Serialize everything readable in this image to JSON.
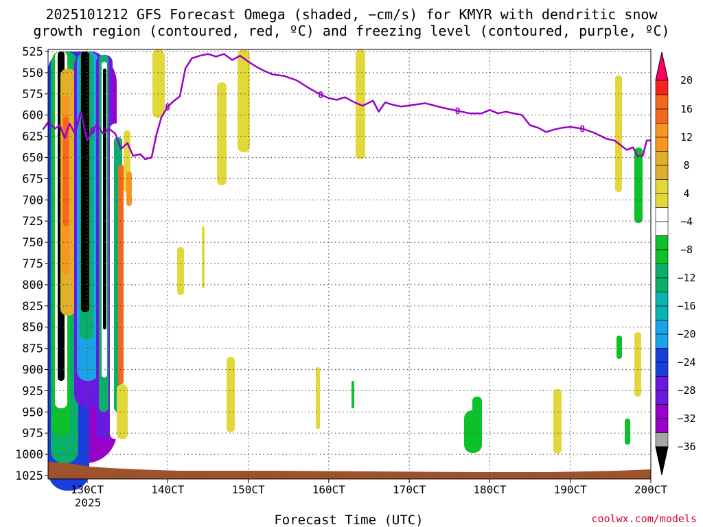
{
  "title": {
    "line1": "2025101212 GFS Forecast Omega (shaded, −cm/s) for KMYR with dendritic snow",
    "line2": "growth region (contoured, red, ºC) and freezing level (contoured, purple, ºC)"
  },
  "xlabel": "Forecast Time (UTC)",
  "credit": "coolwx.com/models",
  "colors": {
    "freezing_line": "#9a00c8",
    "ground": "#a0522d",
    "grid": "#555555"
  },
  "colorbar": {
    "labels": [
      "20",
      "16",
      "12",
      "8",
      "4",
      "−4",
      "−8",
      "−12",
      "−16",
      "−20",
      "−24",
      "−28",
      "−32",
      "−36"
    ],
    "colors": [
      "#ff0060",
      "#f4231d",
      "#f4671e",
      "#f79722",
      "#e2af2a",
      "#e3d83a",
      "#ffffff",
      "#0dc12a",
      "#0ab06a",
      "#09b3b0",
      "#1ba3e8",
      "#1a3ede",
      "#6a1ae0",
      "#9a00c8",
      "#a6a6a6",
      "#000000"
    ]
  },
  "chart_data": {
    "type": "heatmap",
    "title": "2025101212 GFS Forecast Omega (shaded, −cm/s) for KMYR with dendritic snow growth region (contoured, red, ºC) and freezing level (contoured, purple, ºC)",
    "xlabel": "Forecast Time (UTC)",
    "ylabel": "",
    "x_tick_labels": [
      "130CT",
      "140CT",
      "150CT",
      "160CT",
      "170CT",
      "180CT",
      "190CT",
      "200CT"
    ],
    "x_year_label": "2025",
    "y_axis": {
      "ticks": [
        525,
        550,
        575,
        600,
        625,
        650,
        675,
        700,
        725,
        750,
        775,
        800,
        825,
        850,
        875,
        900,
        925,
        950,
        975,
        1000,
        1025
      ],
      "range": [
        525,
        1025
      ],
      "unit": "hPa",
      "inverted": true
    },
    "x_range_days": [
      12.45,
      20.0
    ],
    "grid": true,
    "freezing_level": {
      "label": "0",
      "points": [
        [
          12.45,
          617
        ],
        [
          12.52,
          608
        ],
        [
          12.6,
          616
        ],
        [
          12.66,
          612
        ],
        [
          12.72,
          627
        ],
        [
          12.78,
          610
        ],
        [
          12.85,
          622
        ],
        [
          12.92,
          596
        ],
        [
          13.0,
          630
        ],
        [
          13.07,
          618
        ],
        [
          13.12,
          611
        ],
        [
          13.2,
          622
        ],
        [
          13.27,
          616
        ],
        [
          13.35,
          622
        ],
        [
          13.42,
          640
        ],
        [
          13.5,
          633
        ],
        [
          13.57,
          648
        ],
        [
          13.66,
          646
        ],
        [
          13.72,
          652
        ],
        [
          13.8,
          650
        ],
        [
          13.86,
          623
        ],
        [
          13.92,
          603
        ],
        [
          14.0,
          590
        ],
        [
          14.08,
          583
        ],
        [
          14.15,
          578
        ],
        [
          14.22,
          545
        ],
        [
          14.3,
          533
        ],
        [
          14.4,
          530
        ],
        [
          14.5,
          528
        ],
        [
          14.6,
          531
        ],
        [
          14.7,
          528
        ],
        [
          14.8,
          535
        ],
        [
          14.9,
          530
        ],
        [
          15.0,
          537
        ],
        [
          15.1,
          543
        ],
        [
          15.2,
          548
        ],
        [
          15.3,
          552
        ],
        [
          15.45,
          554
        ],
        [
          15.6,
          559
        ],
        [
          15.75,
          568
        ],
        [
          15.9,
          576
        ],
        [
          16.0,
          580
        ],
        [
          16.1,
          582
        ],
        [
          16.2,
          579
        ],
        [
          16.32,
          585
        ],
        [
          16.42,
          589
        ],
        [
          16.55,
          583
        ],
        [
          16.62,
          596
        ],
        [
          16.7,
          585
        ],
        [
          16.8,
          588
        ],
        [
          16.9,
          590
        ],
        [
          17.05,
          588
        ],
        [
          17.2,
          586
        ],
        [
          17.4,
          591
        ],
        [
          17.6,
          595
        ],
        [
          17.75,
          598
        ],
        [
          17.9,
          598
        ],
        [
          18.0,
          594
        ],
        [
          18.1,
          598
        ],
        [
          18.2,
          596
        ],
        [
          18.4,
          600
        ],
        [
          18.5,
          612
        ],
        [
          18.6,
          615
        ],
        [
          18.7,
          620
        ],
        [
          18.8,
          617
        ],
        [
          18.9,
          615
        ],
        [
          19.0,
          614
        ],
        [
          19.15,
          616
        ],
        [
          19.3,
          621
        ],
        [
          19.45,
          628
        ],
        [
          19.55,
          630
        ],
        [
          19.7,
          641
        ],
        [
          19.78,
          638
        ],
        [
          19.83,
          648
        ],
        [
          19.9,
          648
        ],
        [
          19.95,
          630
        ],
        [
          20.0,
          630
        ]
      ]
    },
    "ground_surface_hPa": 1012
  }
}
